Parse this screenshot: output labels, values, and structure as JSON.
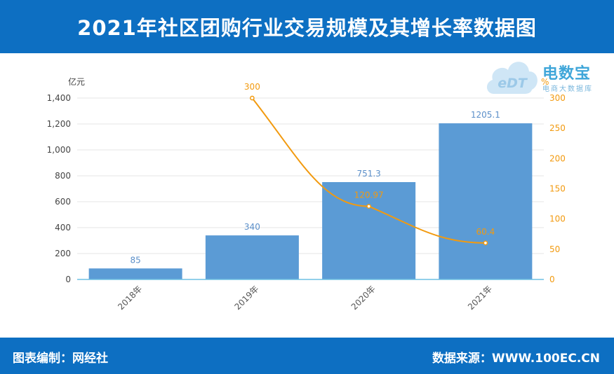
{
  "header": {
    "title": "2021年社区团购行业交易规模及其增长率数据图"
  },
  "footer": {
    "left": "图表编制：网经社",
    "right": "数据来源：WWW.100EC.CN"
  },
  "logo": {
    "brand": "电数宝",
    "sub": "电商大数据库",
    "mark": "eDT"
  },
  "colors": {
    "bar": "#5b9bd5",
    "line": "#f29a0f",
    "header": "#0d6fc2",
    "axis": "#6ec1e4"
  },
  "chart_data": {
    "type": "bar",
    "categories": [
      "2018年",
      "2019年",
      "2020年",
      "2021年"
    ],
    "series": [
      {
        "values": [
          85,
          340,
          751.3,
          1205.1
        ],
        "labels": [
          "85",
          "340",
          "751.3",
          "1205.1"
        ]
      },
      {
        "type": "line",
        "values": [
          null,
          300,
          120.97,
          60.4
        ],
        "labels": [
          "",
          "300",
          "120.97",
          "60.4"
        ]
      }
    ],
    "ylabel": "亿元",
    "y2label": "%",
    "ylim": [
      0,
      1400
    ],
    "y2lim": [
      0,
      300
    ],
    "yticks": [
      "0",
      "200",
      "400",
      "600",
      "800",
      "1,000",
      "1,200",
      "1,400"
    ],
    "y2ticks": [
      "0",
      "50",
      "100",
      "150",
      "200",
      "250",
      "300"
    ],
    "grid": true
  }
}
